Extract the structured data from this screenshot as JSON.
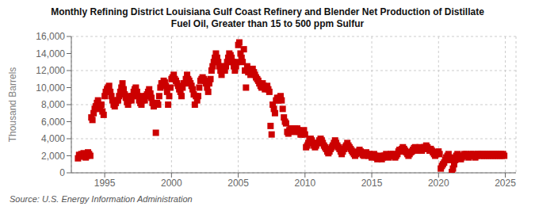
{
  "chart_data": {
    "type": "scatter",
    "title": "Monthly Refining District Louisiana Gulf Coast Refinery and Blender Net Production of Distillate\nFuel Oil, Greater than 15 to 500 ppm Sulfur",
    "ylabel": "Thousand Barrels",
    "source": "Source: U.S. Energy Information Administration",
    "color": "#cc0000",
    "marker": "square",
    "grid": true,
    "xlim": [
      1992.5,
      2025.8
    ],
    "ylim": [
      0,
      16000
    ],
    "xticks": [
      1995,
      2000,
      2005,
      2010,
      2015,
      2020,
      2025
    ],
    "yticks": [
      0,
      {
        "value": 2000,
        "label": "2,000"
      },
      {
        "value": 4000,
        "label": "4,000"
      },
      {
        "value": 6000,
        "label": "6,000"
      },
      {
        "value": 8000,
        "label": "8,000"
      },
      {
        "value": 10000,
        "label": "10,000"
      },
      {
        "value": 12000,
        "label": "12,000"
      },
      {
        "value": 14000,
        "label": "14,000"
      },
      {
        "value": 16000,
        "label": "16,000"
      }
    ],
    "x": [
      1993.0,
      1993.08,
      1993.17,
      1993.25,
      1993.33,
      1993.42,
      1993.5,
      1993.58,
      1993.67,
      1993.75,
      1993.83,
      1993.92,
      1994.0,
      1994.08,
      1994.17,
      1994.25,
      1994.33,
      1994.42,
      1994.5,
      1994.58,
      1994.67,
      1994.75,
      1994.83,
      1994.92,
      1995.0,
      1995.08,
      1995.17,
      1995.25,
      1995.33,
      1995.42,
      1995.5,
      1995.58,
      1995.67,
      1995.75,
      1995.83,
      1995.92,
      1996.0,
      1996.08,
      1996.17,
      1996.25,
      1996.33,
      1996.42,
      1996.5,
      1996.58,
      1996.67,
      1996.75,
      1996.83,
      1996.92,
      1997.0,
      1997.08,
      1997.17,
      1997.25,
      1997.33,
      1997.42,
      1997.5,
      1997.58,
      1997.67,
      1997.75,
      1997.83,
      1997.92,
      1998.0,
      1998.08,
      1998.17,
      1998.25,
      1998.33,
      1998.42,
      1998.5,
      1998.58,
      1998.67,
      1998.75,
      1998.83,
      1998.92,
      1999.0,
      1999.08,
      1999.17,
      1999.25,
      1999.33,
      1999.42,
      1999.5,
      1999.58,
      1999.67,
      1999.75,
      1999.83,
      1999.92,
      2000.0,
      2000.08,
      2000.17,
      2000.25,
      2000.33,
      2000.42,
      2000.5,
      2000.58,
      2000.67,
      2000.75,
      2000.83,
      2000.92,
      2001.0,
      2001.08,
      2001.17,
      2001.25,
      2001.33,
      2001.42,
      2001.5,
      2001.58,
      2001.67,
      2001.75,
      2001.83,
      2001.92,
      2002.0,
      2002.08,
      2002.17,
      2002.25,
      2002.33,
      2002.42,
      2002.5,
      2002.58,
      2002.67,
      2002.75,
      2002.83,
      2002.92,
      2003.0,
      2003.08,
      2003.17,
      2003.25,
      2003.33,
      2003.42,
      2003.5,
      2003.58,
      2003.67,
      2003.75,
      2003.83,
      2003.92,
      2004.0,
      2004.08,
      2004.17,
      2004.25,
      2004.33,
      2004.42,
      2004.5,
      2004.58,
      2004.67,
      2004.75,
      2004.83,
      2004.92,
      2005.0,
      2005.08,
      2005.17,
      2005.25,
      2005.33,
      2005.42,
      2005.5,
      2005.58,
      2005.67,
      2005.75,
      2005.83,
      2005.92,
      2006.0,
      2006.08,
      2006.17,
      2006.25,
      2006.33,
      2006.42,
      2006.5,
      2006.58,
      2006.67,
      2006.75,
      2006.83,
      2006.92,
      2007.0,
      2007.08,
      2007.17,
      2007.25,
      2007.33,
      2007.42,
      2007.5,
      2007.58,
      2007.67,
      2007.75,
      2007.83,
      2007.92,
      2008.0,
      2008.08,
      2008.17,
      2008.25,
      2008.33,
      2008.42,
      2008.5,
      2008.58,
      2008.67,
      2008.75,
      2008.83,
      2008.92,
      2009.0,
      2009.08,
      2009.17,
      2009.25,
      2009.33,
      2009.42,
      2009.5,
      2009.58,
      2009.67,
      2009.75,
      2009.83,
      2009.92,
      2010.0,
      2010.08,
      2010.17,
      2010.25,
      2010.33,
      2010.42,
      2010.5,
      2010.58,
      2010.67,
      2010.75,
      2010.83,
      2010.92,
      2011.0,
      2011.08,
      2011.17,
      2011.25,
      2011.33,
      2011.42,
      2011.5,
      2011.58,
      2011.67,
      2011.75,
      2011.83,
      2011.92,
      2012.0,
      2012.08,
      2012.17,
      2012.25,
      2012.33,
      2012.42,
      2012.5,
      2012.58,
      2012.67,
      2012.75,
      2012.83,
      2012.92,
      2013.0,
      2013.08,
      2013.17,
      2013.25,
      2013.33,
      2013.42,
      2013.5,
      2013.58,
      2013.67,
      2013.75,
      2013.83,
      2013.92,
      2014.0,
      2014.08,
      2014.17,
      2014.25,
      2014.33,
      2014.42,
      2014.5,
      2014.58,
      2014.67,
      2014.75,
      2014.83,
      2014.92,
      2015.0,
      2015.08,
      2015.17,
      2015.25,
      2015.33,
      2015.42,
      2015.5,
      2015.58,
      2015.67,
      2015.75,
      2015.83,
      2015.92,
      2016.0,
      2016.08,
      2016.17,
      2016.25,
      2016.33,
      2016.42,
      2016.5,
      2016.58,
      2016.67,
      2016.75,
      2016.83,
      2016.92,
      2017.0,
      2017.08,
      2017.17,
      2017.25,
      2017.33,
      2017.42,
      2017.5,
      2017.58,
      2017.67,
      2017.75,
      2017.83,
      2017.92,
      2018.0,
      2018.08,
      2018.17,
      2018.25,
      2018.33,
      2018.42,
      2018.5,
      2018.58,
      2018.67,
      2018.75,
      2018.83,
      2018.92,
      2019.0,
      2019.08,
      2019.17,
      2019.25,
      2019.33,
      2019.42,
      2019.5,
      2019.58,
      2019.67,
      2019.75,
      2019.83,
      2019.92,
      2020.0,
      2020.08,
      2020.17,
      2020.25,
      2020.33,
      2020.42,
      2020.5,
      2020.58,
      2020.67,
      2020.75,
      2020.83,
      2020.92,
      2021.0,
      2021.08,
      2021.17,
      2021.25,
      2021.33,
      2021.42,
      2021.5,
      2021.58,
      2021.67,
      2021.75,
      2021.83,
      2021.92,
      2022.0,
      2022.08,
      2022.17,
      2022.25,
      2022.33,
      2022.42,
      2022.5,
      2022.58,
      2022.67,
      2022.75,
      2022.83,
      2022.92,
      2023.0,
      2023.08,
      2023.17,
      2023.25,
      2023.33,
      2023.42,
      2023.5,
      2023.58,
      2023.67,
      2023.75,
      2023.83,
      2023.92,
      2024.0,
      2024.08,
      2024.17,
      2024.25,
      2024.33,
      2024.42,
      2024.5,
      2024.58,
      2024.67,
      2024.75,
      2024.83,
      2024.92
    ],
    "values": [
      1700,
      2100,
      1900,
      2200,
      2000,
      2300,
      2100,
      1800,
      2000,
      2400,
      2200,
      2000,
      6500,
      6200,
      7000,
      7500,
      7800,
      8200,
      8500,
      8000,
      7500,
      8000,
      7200,
      6800,
      9000,
      9500,
      9800,
      10000,
      10200,
      9500,
      9000,
      8500,
      8000,
      7800,
      8200,
      8500,
      8500,
      9000,
      9500,
      10000,
      10500,
      9800,
      9200,
      8800,
      8300,
      8000,
      8500,
      9000,
      8500,
      9000,
      9500,
      9800,
      10000,
      9500,
      9000,
      8500,
      8200,
      8000,
      8500,
      9000,
      8500,
      9000,
      9200,
      9500,
      9800,
      9300,
      8800,
      8200,
      7800,
      8000,
      4700,
      8200,
      8000,
      9000,
      10000,
      10500,
      10500,
      10800,
      10600,
      10200,
      9500,
      8000,
      9000,
      10000,
      11000,
      11200,
      11500,
      11000,
      10800,
      10500,
      10200,
      9800,
      9500,
      9000,
      10000,
      10500,
      10500,
      11000,
      11500,
      11000,
      10800,
      10500,
      10200,
      9800,
      9200,
      8000,
      9000,
      8500,
      9000,
      10000,
      10800,
      11000,
      11200,
      11000,
      10800,
      10500,
      10000,
      9500,
      10500,
      11000,
      12000,
      12500,
      13000,
      13500,
      14000,
      13500,
      13000,
      12500,
      12000,
      11500,
      12000,
      12500,
      12000,
      12500,
      13000,
      13500,
      14000,
      13800,
      13500,
      13000,
      12500,
      12000,
      12500,
      13000,
      15000,
      15300,
      14000,
      13500,
      13000,
      14500,
      12000,
      10000,
      12500,
      11800,
      12000,
      11500,
      12000,
      12200,
      11800,
      11500,
      11200,
      11000,
      10800,
      10500,
      10200,
      10000,
      10500,
      10200,
      9800,
      10000,
      10200,
      9800,
      9500,
      5500,
      4500,
      8000,
      7500,
      7000,
      8500,
      8800,
      8500,
      8800,
      9000,
      8500,
      7500,
      6500,
      6000,
      5800,
      4800,
      4600,
      5000,
      5200,
      5000,
      5200,
      4800,
      5200,
      4900,
      5200,
      5000,
      4800,
      4500,
      4500,
      4800,
      5000,
      4500,
      3000,
      3200,
      3500,
      3800,
      4000,
      3800,
      3500,
      3200,
      3000,
      3200,
      3500,
      3500,
      3800,
      4000,
      3800,
      3500,
      3200,
      3000,
      2800,
      2500,
      2300,
      2500,
      2800,
      3000,
      3200,
      3500,
      3800,
      3500,
      3200,
      3000,
      2800,
      2500,
      2200,
      2500,
      2800,
      3000,
      3200,
      3500,
      3200,
      3000,
      2800,
      2600,
      2400,
      2200,
      2000,
      2200,
      2400,
      2500,
      2700,
      2500,
      2300,
      2100,
      2000,
      2200,
      2400,
      2200,
      2000,
      2200,
      2000,
      1800,
      2000,
      2200,
      2000,
      1800,
      1600,
      1800,
      2000,
      1800,
      1600,
      1800,
      2000,
      2000,
      2200,
      2000,
      1800,
      2000,
      2200,
      2000,
      2200,
      2000,
      1800,
      2000,
      2200,
      2500,
      2700,
      2500,
      2800,
      3000,
      2800,
      2600,
      2400,
      2200,
      2000,
      2200,
      2400,
      2500,
      2700,
      2900,
      3000,
      2800,
      2600,
      2800,
      3000,
      2800,
      2600,
      2800,
      3000,
      3000,
      3200,
      3000,
      2800,
      2600,
      2800,
      2600,
      2400,
      2200,
      2000,
      2200,
      2400,
      2500,
      2200,
      500,
      800,
      1000,
      1200,
      1500,
      1800,
      2000,
      2200,
      1500,
      1800,
      100,
      500,
      1000,
      1500,
      2000,
      2200,
      2000,
      1800,
      1600,
      1800,
      2000,
      2200,
      2000,
      2200,
      2000,
      1800,
      2000,
      2200,
      2000,
      2200,
      2000,
      1800,
      2000,
      2200,
      2200,
      2000,
      2200,
      2000,
      2200,
      2000,
      2200,
      2000,
      2200,
      2000,
      2200,
      2000,
      2200,
      2000,
      2200,
      2000,
      2200,
      2000,
      2200,
      2000,
      2200,
      2000,
      2200,
      2000
    ]
  }
}
